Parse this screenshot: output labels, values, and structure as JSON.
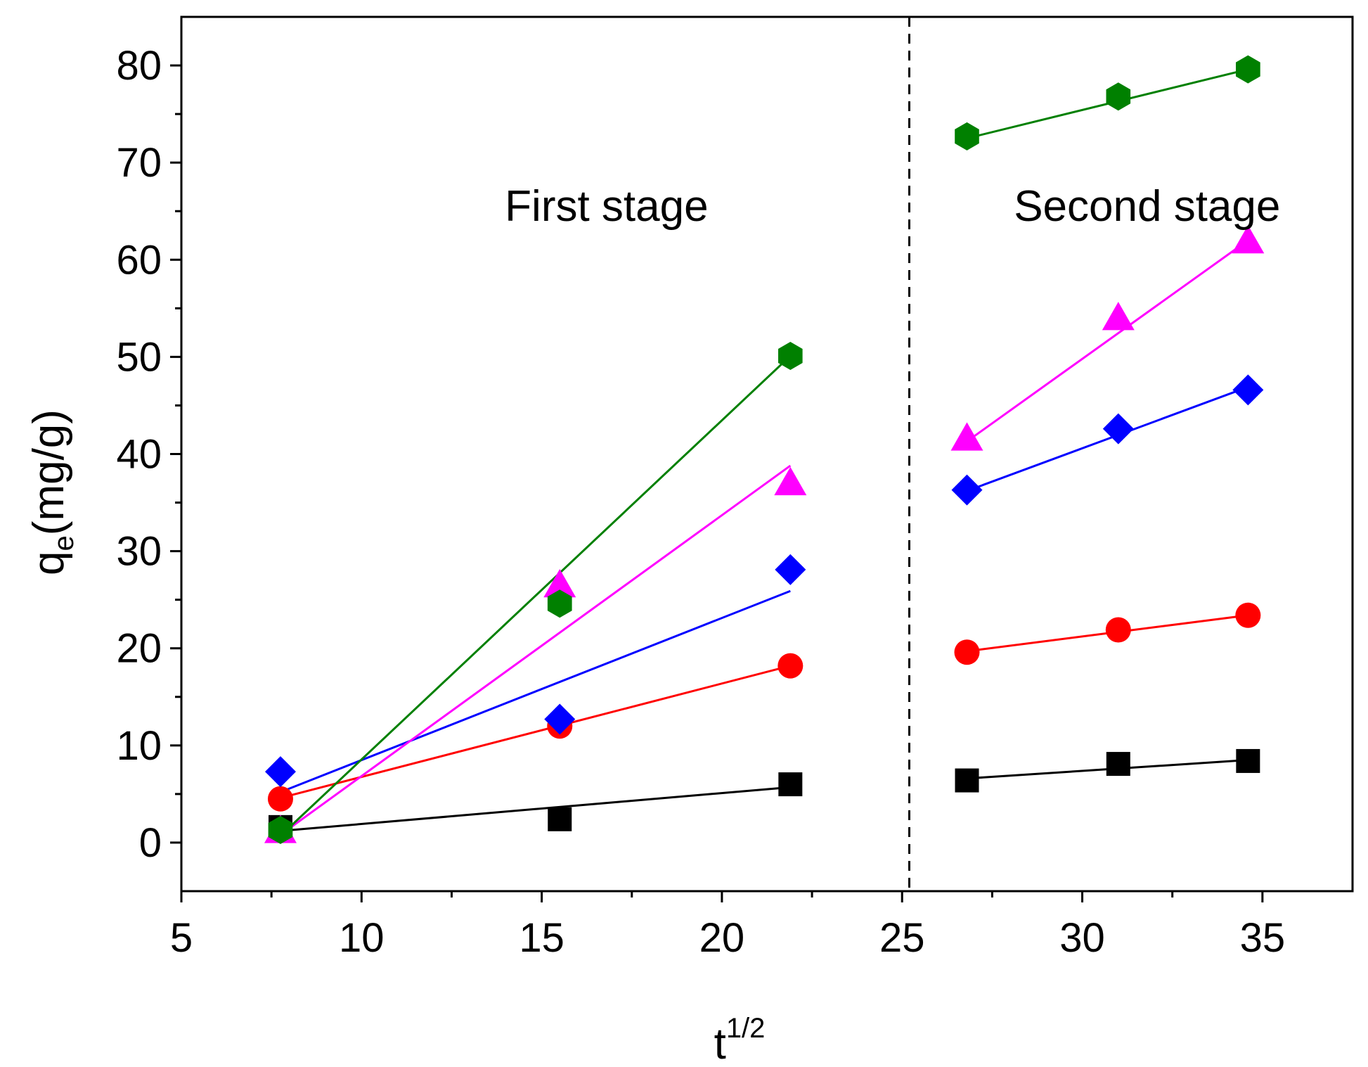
{
  "chart_data": {
    "type": "scatter",
    "title": "",
    "xlabel": "t",
    "xlabel_sup": "1/2",
    "ylabel": "q",
    "ylabel_sub": "e",
    "ylabel_units": "(mg/g)",
    "xlim": [
      5,
      37.5
    ],
    "ylim": [
      -5,
      85
    ],
    "xticks": [
      5,
      10,
      15,
      20,
      25,
      30,
      35
    ],
    "yticks": [
      0,
      10,
      20,
      30,
      40,
      50,
      60,
      70,
      80
    ],
    "divider_x": 25.2,
    "annotations": [
      {
        "text": "First stage",
        "x": 16.8,
        "y": 64
      },
      {
        "text": "Second stage",
        "x": 31.8,
        "y": 64
      }
    ],
    "series": [
      {
        "name": "series-black-square",
        "color": "#000000",
        "marker": "square",
        "stage1": {
          "x": [
            7.75,
            15.5,
            21.9
          ],
          "y": [
            1.6,
            2.4,
            6.0
          ],
          "fit": [
            [
              7.75,
              1.2
            ],
            [
              21.9,
              5.7
            ]
          ]
        },
        "stage2": {
          "x": [
            26.8,
            31.0,
            34.6
          ],
          "y": [
            6.4,
            8.1,
            8.4
          ],
          "fit": [
            [
              26.8,
              6.6
            ],
            [
              34.6,
              8.5
            ]
          ]
        }
      },
      {
        "name": "series-red-circle",
        "color": "#ff0000",
        "marker": "circle",
        "stage1": {
          "x": [
            7.75,
            15.5,
            21.9
          ],
          "y": [
            4.5,
            12.0,
            18.2
          ],
          "fit": [
            [
              7.75,
              4.6
            ],
            [
              21.9,
              18.2
            ]
          ]
        },
        "stage2": {
          "x": [
            26.8,
            31.0,
            34.6
          ],
          "y": [
            19.6,
            21.9,
            23.4
          ],
          "fit": [
            [
              26.8,
              19.7
            ],
            [
              34.6,
              23.4
            ]
          ]
        }
      },
      {
        "name": "series-blue-diamond",
        "color": "#0000ff",
        "marker": "diamond",
        "stage1": {
          "x": [
            7.75,
            15.5,
            21.9
          ],
          "y": [
            7.3,
            12.7,
            28.1
          ],
          "fit": [
            [
              7.75,
              5.2
            ],
            [
              21.9,
              25.9
            ]
          ]
        },
        "stage2": {
          "x": [
            26.8,
            31.0,
            34.6
          ],
          "y": [
            36.3,
            42.6,
            46.6
          ],
          "fit": [
            [
              26.8,
              36.2
            ],
            [
              34.6,
              46.9
            ]
          ]
        }
      },
      {
        "name": "series-magenta-triangle",
        "color": "#ff00ff",
        "marker": "triangle",
        "stage1": {
          "x": [
            7.75,
            15.5,
            21.9
          ],
          "y": [
            1.2,
            26.5,
            37.0
          ],
          "fit": [
            [
              7.75,
              0.8
            ],
            [
              21.9,
              38.8
            ]
          ]
        },
        "stage2": {
          "x": [
            26.8,
            31.0,
            34.6
          ],
          "y": [
            41.6,
            54.0,
            61.9
          ],
          "fit": [
            [
              26.8,
              41.3
            ],
            [
              34.6,
              62.0
            ]
          ]
        }
      },
      {
        "name": "series-green-hexagon",
        "color": "#008000",
        "marker": "hexagon",
        "stage1": {
          "x": [
            7.75,
            15.5,
            21.9
          ],
          "y": [
            1.3,
            24.6,
            50.1
          ],
          "fit": [
            [
              7.75,
              0.7
            ],
            [
              21.9,
              50.1
            ]
          ]
        },
        "stage2": {
          "x": [
            26.8,
            31.0,
            34.6
          ],
          "y": [
            72.7,
            76.8,
            79.6
          ],
          "fit": [
            [
              26.8,
              72.5
            ],
            [
              34.6,
              79.6
            ]
          ]
        }
      }
    ]
  }
}
